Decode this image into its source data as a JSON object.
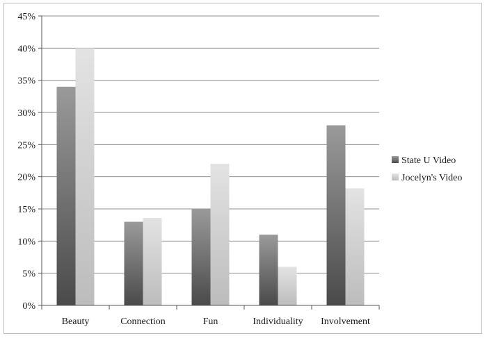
{
  "chart_data": {
    "type": "bar",
    "categories": [
      "Beauty",
      "Connection",
      "Fun",
      "Individuality",
      "Involvement"
    ],
    "series": [
      {
        "name": "State U Video",
        "values": [
          34,
          13,
          15,
          11,
          28
        ],
        "color": "#6e6e6e"
      },
      {
        "name": "Jocelyn's Video",
        "values": [
          40,
          13.6,
          22,
          6,
          18.2
        ],
        "color": "#cfcfcf"
      }
    ],
    "ylim": [
      0,
      45
    ],
    "ytick_labels": [
      "0%",
      "5%",
      "10%",
      "15%",
      "20%",
      "25%",
      "30%",
      "35%",
      "40%",
      "45%"
    ],
    "grid": true,
    "legend_position": "right"
  }
}
